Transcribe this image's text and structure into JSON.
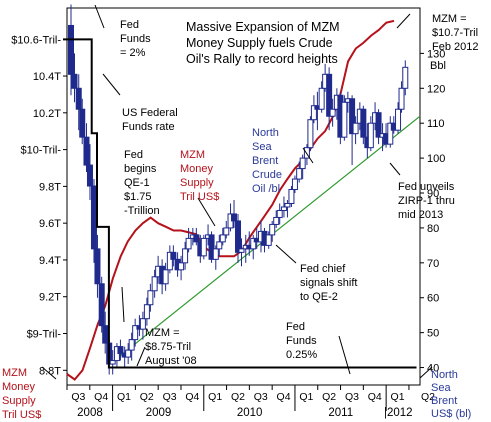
{
  "chart_data": {
    "type": "line",
    "title": "Massive Expansion of MZM Money Supply fuels Crude Oil's Rally to record heights",
    "title_lines": [
      "Massive Expansion of MZM",
      "Money Supply fuels Crude",
      "Oil's Rally to record heights"
    ],
    "left_axis": {
      "ticks": [
        {
          "label": "$10.6-Tril-",
          "value": 10.6
        },
        {
          "label": "10.4T",
          "value": 10.4
        },
        {
          "label": "10.2T",
          "value": 10.2
        },
        {
          "label": "$10-Tril-",
          "value": 10.0
        },
        {
          "label": "9.8T",
          "value": 9.8
        },
        {
          "label": "9.6T",
          "value": 9.6
        },
        {
          "label": "9.4T",
          "value": 9.4
        },
        {
          "label": "9.2T",
          "value": 9.2
        },
        {
          "label": "$9-Tril-",
          "value": 9.0
        },
        {
          "label": "8.8T",
          "value": 8.8
        }
      ],
      "title_lines": [
        "MZM",
        "Money",
        "Supply",
        "Tril US$"
      ],
      "range": [
        8.72,
        10.77
      ]
    },
    "right_axis": {
      "unit_label": "Bbl",
      "ticks": [
        40,
        50,
        60,
        70,
        80,
        90,
        100,
        110,
        120,
        130
      ],
      "title_lines": [
        "North",
        "Sea",
        "Brent",
        "US$ (bl)"
      ],
      "range": [
        35,
        143
      ]
    },
    "x_axis": {
      "quarters": [
        "Q3",
        "Q4",
        "Q1",
        "Q2",
        "Q3",
        "Q4",
        "Q1",
        "Q2",
        "Q3",
        "Q4",
        "Q1",
        "Q2",
        "Q3",
        "Q4",
        "Q1",
        "Q2"
      ],
      "years": [
        "2008",
        "2009",
        "2010",
        "2011",
        "|2012"
      ],
      "range": [
        "2008-07-01",
        "2012-05-15"
      ]
    },
    "series": [
      {
        "name": "MZM Money Supply Tril US$",
        "color": "#b5121b",
        "axis": "left",
        "points": [
          [
            "2008-07-01",
            8.78
          ],
          [
            "2008-08-01",
            8.75
          ],
          [
            "2008-09-01",
            8.8
          ],
          [
            "2008-10-01",
            8.92
          ],
          [
            "2008-11-01",
            9.05
          ],
          [
            "2008-12-01",
            9.15
          ],
          [
            "2009-01-01",
            9.3
          ],
          [
            "2009-02-01",
            9.42
          ],
          [
            "2009-03-01",
            9.5
          ],
          [
            "2009-04-01",
            9.56
          ],
          [
            "2009-05-01",
            9.6
          ],
          [
            "2009-06-01",
            9.63
          ],
          [
            "2009-07-01",
            9.6
          ],
          [
            "2009-08-01",
            9.58
          ],
          [
            "2009-09-01",
            9.56
          ],
          [
            "2009-10-01",
            9.56
          ],
          [
            "2009-11-01",
            9.55
          ],
          [
            "2009-12-01",
            9.54
          ],
          [
            "2010-01-01",
            9.47
          ],
          [
            "2010-02-01",
            9.44
          ],
          [
            "2010-03-01",
            9.42
          ],
          [
            "2010-04-01",
            9.42
          ],
          [
            "2010-05-01",
            9.42
          ],
          [
            "2010-06-01",
            9.45
          ],
          [
            "2010-07-01",
            9.52
          ],
          [
            "2010-08-01",
            9.58
          ],
          [
            "2010-09-01",
            9.64
          ],
          [
            "2010-10-01",
            9.7
          ],
          [
            "2010-11-01",
            9.78
          ],
          [
            "2010-12-01",
            9.84
          ],
          [
            "2011-01-01",
            9.9
          ],
          [
            "2011-02-01",
            9.94
          ],
          [
            "2011-03-01",
            10.0
          ],
          [
            "2011-04-01",
            10.06
          ],
          [
            "2011-05-01",
            10.1
          ],
          [
            "2011-06-01",
            10.18
          ],
          [
            "2011-07-01",
            10.3
          ],
          [
            "2011-08-01",
            10.48
          ],
          [
            "2011-09-01",
            10.55
          ],
          [
            "2011-10-01",
            10.58
          ],
          [
            "2011-11-01",
            10.62
          ],
          [
            "2011-12-01",
            10.65
          ],
          [
            "2012-01-01",
            10.69
          ],
          [
            "2012-02-01",
            10.7
          ]
        ]
      },
      {
        "name": "North Sea Brent Crude Oil /bl",
        "color": "#1f2a8c",
        "axis": "right",
        "type": "candlestick",
        "candles": [
          [
            "2008-07-01",
            138,
            144,
            118,
            124
          ],
          [
            "2008-07-15",
            124,
            130,
            116,
            120
          ],
          [
            "2008-08-01",
            120,
            124,
            108,
            114
          ],
          [
            "2008-08-15",
            114,
            117,
            104,
            106
          ],
          [
            "2008-09-01",
            106,
            110,
            96,
            98
          ],
          [
            "2008-09-15",
            98,
            104,
            88,
            92
          ],
          [
            "2008-10-01",
            92,
            94,
            70,
            74
          ],
          [
            "2008-10-15",
            74,
            78,
            60,
            64
          ],
          [
            "2008-11-01",
            64,
            66,
            50,
            52
          ],
          [
            "2008-11-15",
            52,
            56,
            44,
            47
          ],
          [
            "2008-12-01",
            47,
            48,
            38,
            41
          ],
          [
            "2008-12-15",
            41,
            45,
            38,
            42
          ],
          [
            "2009-01-01",
            42,
            47,
            40,
            46
          ],
          [
            "2009-01-15",
            46,
            48,
            42,
            44
          ],
          [
            "2009-02-01",
            44,
            46,
            40,
            43
          ],
          [
            "2009-02-15",
            43,
            47,
            41,
            45
          ],
          [
            "2009-03-01",
            45,
            50,
            42,
            48
          ],
          [
            "2009-03-15",
            48,
            54,
            46,
            52
          ],
          [
            "2009-04-01",
            52,
            55,
            49,
            51
          ],
          [
            "2009-04-15",
            51,
            56,
            48,
            54
          ],
          [
            "2009-05-01",
            54,
            60,
            52,
            58
          ],
          [
            "2009-05-15",
            58,
            64,
            56,
            62
          ],
          [
            "2009-06-01",
            62,
            68,
            60,
            66
          ],
          [
            "2009-06-15",
            66,
            72,
            64,
            69
          ],
          [
            "2009-07-01",
            69,
            71,
            61,
            64
          ],
          [
            "2009-07-15",
            64,
            70,
            62,
            68
          ],
          [
            "2009-08-01",
            68,
            75,
            67,
            73
          ],
          [
            "2009-08-15",
            73,
            75,
            69,
            71
          ],
          [
            "2009-09-01",
            71,
            73,
            66,
            68
          ],
          [
            "2009-09-15",
            68,
            72,
            65,
            70
          ],
          [
            "2009-10-01",
            70,
            76,
            68,
            74
          ],
          [
            "2009-10-15",
            74,
            80,
            73,
            77
          ],
          [
            "2009-11-01",
            77,
            80,
            75,
            78
          ],
          [
            "2009-11-15",
            78,
            80,
            75,
            76
          ],
          [
            "2009-12-01",
            76,
            78,
            70,
            72
          ],
          [
            "2009-12-15",
            72,
            78,
            71,
            77
          ],
          [
            "2010-01-01",
            77,
            81,
            75,
            78
          ],
          [
            "2010-01-15",
            78,
            79,
            70,
            71
          ],
          [
            "2010-02-01",
            71,
            75,
            68,
            74
          ],
          [
            "2010-02-15",
            74,
            78,
            72,
            76
          ],
          [
            "2010-03-01",
            76,
            80,
            75,
            78
          ],
          [
            "2010-03-15",
            78,
            82,
            77,
            80
          ],
          [
            "2010-04-01",
            80,
            87,
            79,
            84
          ],
          [
            "2010-04-15",
            84,
            88,
            80,
            82
          ],
          [
            "2010-05-01",
            82,
            84,
            70,
            73
          ],
          [
            "2010-05-15",
            73,
            77,
            69,
            74
          ],
          [
            "2010-06-01",
            74,
            78,
            70,
            75
          ],
          [
            "2010-06-15",
            75,
            79,
            72,
            74
          ],
          [
            "2010-07-01",
            74,
            78,
            71,
            77
          ],
          [
            "2010-07-15",
            77,
            80,
            74,
            76
          ],
          [
            "2010-08-01",
            76,
            82,
            73,
            79
          ],
          [
            "2010-08-15",
            79,
            80,
            73,
            75
          ],
          [
            "2010-09-01",
            75,
            79,
            74,
            78
          ],
          [
            "2010-09-15",
            78,
            82,
            76,
            81
          ],
          [
            "2010-10-01",
            81,
            85,
            80,
            83
          ],
          [
            "2010-10-15",
            83,
            87,
            81,
            85
          ],
          [
            "2010-11-01",
            85,
            89,
            83,
            86
          ],
          [
            "2010-11-15",
            86,
            88,
            83,
            87
          ],
          [
            "2010-12-01",
            87,
            92,
            86,
            91
          ],
          [
            "2010-12-15",
            91,
            95,
            90,
            94
          ],
          [
            "2011-01-01",
            94,
            99,
            93,
            97
          ],
          [
            "2011-01-15",
            97,
            101,
            94,
            100
          ],
          [
            "2011-02-01",
            100,
            104,
            98,
            103
          ],
          [
            "2011-02-15",
            103,
            112,
            102,
            111
          ],
          [
            "2011-03-01",
            111,
            118,
            110,
            115
          ],
          [
            "2011-03-15",
            115,
            119,
            108,
            114
          ],
          [
            "2011-04-01",
            114,
            122,
            113,
            120
          ],
          [
            "2011-04-15",
            120,
            127,
            119,
            124
          ],
          [
            "2011-05-01",
            124,
            126,
            108,
            112
          ],
          [
            "2011-05-15",
            112,
            117,
            109,
            114
          ],
          [
            "2011-06-01",
            114,
            120,
            111,
            118
          ],
          [
            "2011-06-15",
            118,
            119,
            104,
            106
          ],
          [
            "2011-07-01",
            106,
            118,
            105,
            116
          ],
          [
            "2011-07-15",
            116,
            119,
            113,
            117
          ],
          [
            "2011-08-01",
            117,
            118,
            98,
            107
          ],
          [
            "2011-08-15",
            107,
            112,
            104,
            110
          ],
          [
            "2011-09-01",
            110,
            116,
            108,
            114
          ],
          [
            "2011-09-15",
            114,
            115,
            104,
            106
          ],
          [
            "2011-10-01",
            106,
            110,
            100,
            103
          ],
          [
            "2011-10-15",
            103,
            112,
            102,
            110
          ],
          [
            "2011-11-01",
            110,
            116,
            108,
            113
          ],
          [
            "2011-11-15",
            113,
            114,
            104,
            106
          ],
          [
            "2011-12-01",
            106,
            110,
            102,
            107
          ],
          [
            "2011-12-15",
            107,
            110,
            103,
            104
          ],
          [
            "2012-01-01",
            104,
            112,
            103,
            110
          ],
          [
            "2012-01-15",
            110,
            112,
            107,
            108
          ],
          [
            "2012-02-01",
            108,
            116,
            107,
            114
          ],
          [
            "2012-02-15",
            114,
            122,
            113,
            120
          ],
          [
            "2012-03-01",
            120,
            128,
            118,
            126
          ]
        ]
      },
      {
        "name": "US Federal Funds rate",
        "color": "#000000",
        "points": [
          [
            "2008-06-15",
            2.0
          ],
          [
            "2008-10-08",
            2.0
          ],
          [
            "2008-10-08",
            1.5
          ],
          [
            "2008-10-29",
            1.5
          ],
          [
            "2008-10-29",
            1.0
          ],
          [
            "2008-12-16",
            1.0
          ],
          [
            "2008-12-16",
            0.25
          ],
          [
            "2012-05-01",
            0.25
          ]
        ],
        "display_levels": {
          "high": 134,
          "low": 40
        }
      },
      {
        "name": "Trendline",
        "color": "#2e9a2e",
        "points": [
          [
            "2008-12-20",
            41
          ],
          [
            "2012-05-15",
            112
          ]
        ]
      }
    ],
    "annotations": {
      "fed_funds": [
        "Fed",
        "Funds",
        "= 2%"
      ],
      "us_federal_funds_rate": [
        "US Federal",
        "Funds rate"
      ],
      "fed_begins_qe1": [
        "Fed",
        "begins",
        "QE-1",
        "$1.75",
        "-Trillion"
      ],
      "mzm_series_label": [
        "MZM",
        "Money",
        "Supply",
        "Tril US$"
      ],
      "north_sea_brent_label": [
        "North",
        "Sea",
        "Brent",
        "Crude",
        "Oil /bl"
      ],
      "mzm_current": [
        "MZM =",
        "$10.7-Tril",
        "Feb 2012"
      ],
      "fed_unveils_zirp": [
        "Fed unveils",
        "ZIRP-1 thru",
        "mid 2013"
      ],
      "fed_chief_qe2": [
        "Fed chief",
        "signals shift",
        "to QE-2"
      ],
      "mzm_aug08": [
        "MZM =",
        "$8.75-Tril",
        "August '08"
      ],
      "fed_funds_low": [
        "Fed",
        "Funds",
        "0.25%"
      ]
    },
    "grid": false,
    "legend": "none",
    "colors": {
      "mzm": "#b5121b",
      "brent": "#1f2a8c",
      "fedfunds": "#000000",
      "trend": "#2e9a2e",
      "annotation_blue": "#2a3a9a"
    }
  }
}
